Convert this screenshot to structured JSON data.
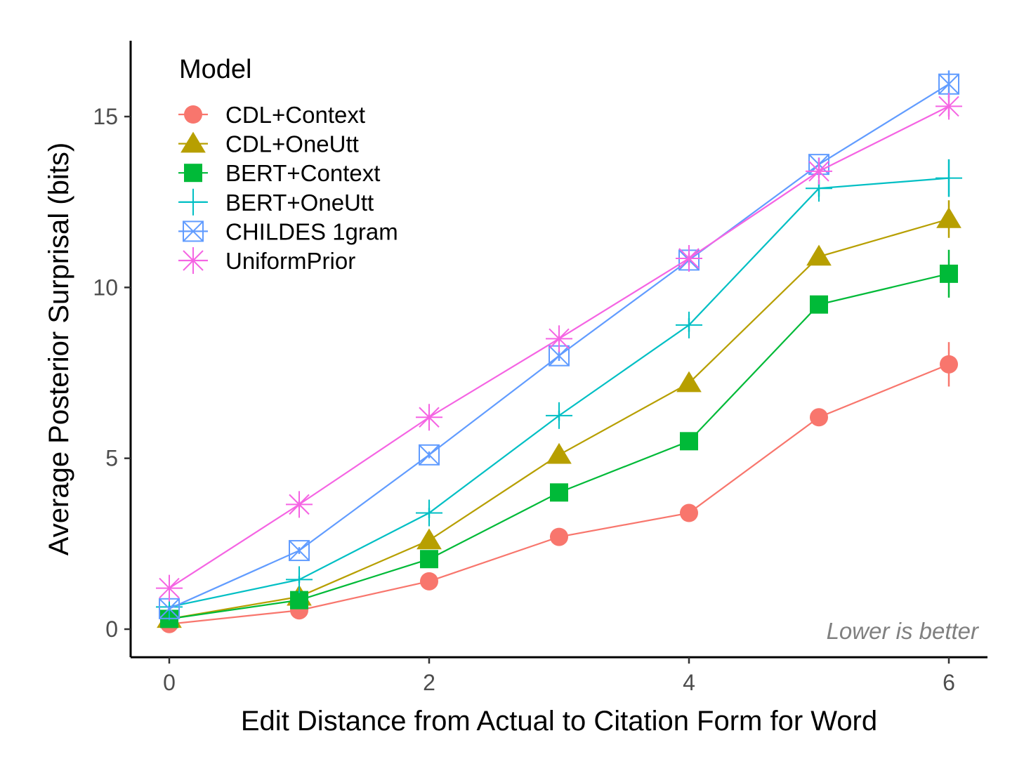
{
  "chart_data": {
    "type": "line",
    "title": "",
    "xlabel": "Edit Distance from Actual to Citation Form for Word",
    "ylabel": "Average Posterior Surprisal (bits)",
    "xlim": [
      -0.3,
      6.3
    ],
    "ylim": [
      -0.8,
      17.3
    ],
    "x_ticks": [
      0,
      2,
      4,
      6
    ],
    "y_ticks": [
      0,
      5,
      10,
      15
    ],
    "x_tick_labels": [
      "0",
      "2",
      "4",
      "6"
    ],
    "y_tick_labels": [
      "0",
      "5",
      "10",
      "15"
    ],
    "grid": false,
    "legend": {
      "title": "Model",
      "position": "top-left"
    },
    "annotation": "Lower is better",
    "x": [
      0,
      1,
      2,
      3,
      4,
      5,
      6
    ],
    "series": [
      {
        "name": "CDL+Context",
        "color": "#F8766D",
        "marker": "circle",
        "values": [
          0.15,
          0.55,
          1.4,
          2.7,
          3.4,
          6.2,
          7.75
        ],
        "error": [
          0.05,
          0.1,
          0.1,
          0.15,
          0.2,
          0.2,
          0.65
        ]
      },
      {
        "name": "CDL+OneUtt",
        "color": "#B79F00",
        "marker": "triangle",
        "values": [
          0.3,
          0.95,
          2.6,
          5.1,
          7.2,
          10.9,
          12.0
        ],
        "error": [
          0.05,
          0.1,
          0.1,
          0.15,
          0.2,
          0.25,
          0.55
        ]
      },
      {
        "name": "BERT+Context",
        "color": "#00BA38",
        "marker": "square",
        "values": [
          0.3,
          0.85,
          2.05,
          4.0,
          5.5,
          9.5,
          10.4
        ],
        "error": [
          0.05,
          0.1,
          0.1,
          0.15,
          0.2,
          0.25,
          0.7
        ]
      },
      {
        "name": "BERT+OneUtt",
        "color": "#00BFC4",
        "marker": "plus",
        "values": [
          0.65,
          1.45,
          3.4,
          6.25,
          8.9,
          12.9,
          13.2
        ],
        "error": [
          0.05,
          0.1,
          0.15,
          0.15,
          0.2,
          0.25,
          0.55
        ]
      },
      {
        "name": "CHILDES 1gram",
        "color": "#619CFF",
        "marker": "square-x",
        "values": [
          0.6,
          2.3,
          5.1,
          8.0,
          10.8,
          13.6,
          15.95
        ],
        "error": [
          0.05,
          0.1,
          0.1,
          0.15,
          0.15,
          0.2,
          0.4
        ]
      },
      {
        "name": "UniformPrior",
        "color": "#F564E3",
        "marker": "asterisk",
        "values": [
          1.2,
          3.65,
          6.2,
          8.5,
          10.85,
          13.4,
          15.3
        ],
        "error": [
          0.05,
          0.1,
          0.1,
          0.1,
          0.15,
          0.2,
          0.3
        ]
      }
    ]
  }
}
